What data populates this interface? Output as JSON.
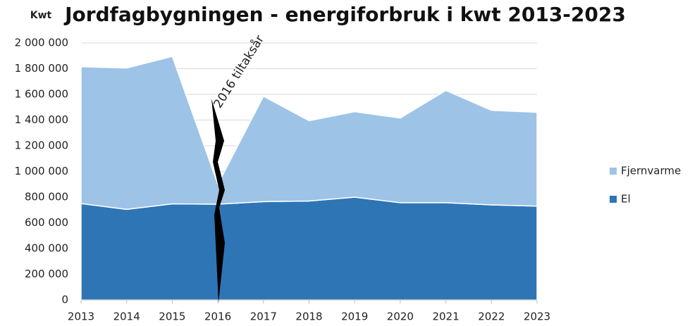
{
  "chart_data": {
    "type": "area",
    "stacked": true,
    "title": "Jordfagbygningen - energiforbruk i kwt 2013-2023",
    "y_label": "Kwt",
    "annotation": "2016 tiltaksår",
    "x": [
      2013,
      2014,
      2015,
      2016,
      2017,
      2018,
      2019,
      2020,
      2021,
      2022,
      2023
    ],
    "series": [
      {
        "name": "El",
        "color": "#2e75b6",
        "values": [
          750000,
          705000,
          748000,
          745000,
          765000,
          770000,
          800000,
          757000,
          757000,
          740000,
          730000
        ]
      },
      {
        "name": "Fjernvarme",
        "color": "#9dc3e6",
        "values": [
          1065000,
          1100000,
          1147000,
          155000,
          820000,
          625000,
          665000,
          658000,
          873000,
          735000,
          730000
        ]
      }
    ],
    "xlim": [
      2013,
      2023
    ],
    "xticks": [
      2013,
      2014,
      2015,
      2016,
      2017,
      2018,
      2019,
      2020,
      2021,
      2022,
      2023
    ],
    "ylim": [
      0,
      2000000
    ],
    "yticks": [
      0,
      {
        "value": 200000,
        "label": "200 000"
      },
      {
        "value": 400000,
        "label": "400 000"
      },
      {
        "value": 600000,
        "label": "600 000"
      },
      {
        "value": 800000,
        "label": "800 000"
      },
      {
        "value": 1000000,
        "label": "1 000 000"
      },
      {
        "value": 1200000,
        "label": "1 200 000"
      },
      {
        "value": 1400000,
        "label": "1 400 000"
      },
      {
        "value": 1600000,
        "label": "1 600 000"
      },
      {
        "value": 1800000,
        "label": "1 800 000"
      },
      {
        "value": 2000000,
        "label": "2 000 000"
      }
    ],
    "grid": true,
    "legend": "right"
  }
}
